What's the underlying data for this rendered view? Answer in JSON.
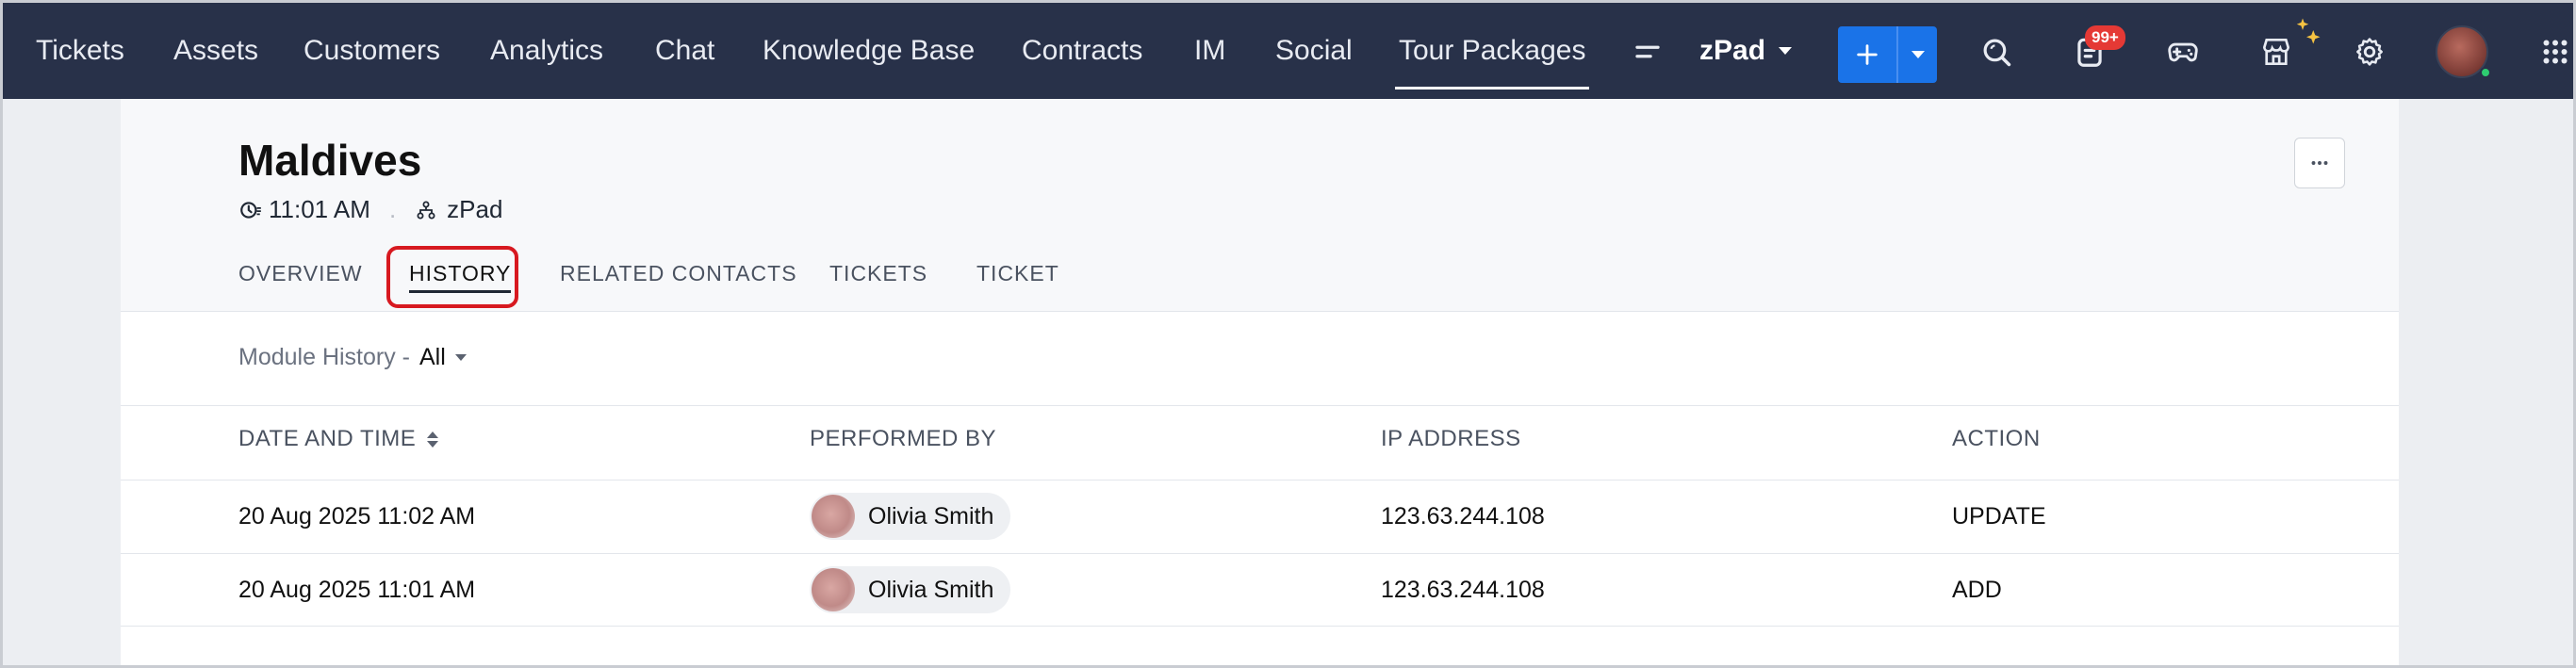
{
  "nav": {
    "items": [
      {
        "label": "Tickets"
      },
      {
        "label": "Assets"
      },
      {
        "label": "Customers"
      },
      {
        "label": "Analytics"
      },
      {
        "label": "Chat"
      },
      {
        "label": "Knowledge Base"
      },
      {
        "label": "Contracts"
      },
      {
        "label": "IM"
      },
      {
        "label": "Social"
      },
      {
        "label": "Tour Packages",
        "active": true
      }
    ],
    "department": "zPad",
    "notification_badge": "99+"
  },
  "record": {
    "title": "Maldives",
    "time": "11:01 AM",
    "department": "zPad"
  },
  "tabs": [
    {
      "label": "OVERVIEW"
    },
    {
      "label": "HISTORY",
      "active": true
    },
    {
      "label": "RELATED CONTACTS"
    },
    {
      "label": "TICKETS"
    },
    {
      "label": "TICKET"
    }
  ],
  "filter": {
    "label": "Module History -",
    "value": "All"
  },
  "table": {
    "columns": [
      "DATE AND TIME",
      "PERFORMED BY",
      "IP ADDRESS",
      "ACTION"
    ],
    "rows": [
      {
        "datetime": "20 Aug 2025 11:02 AM",
        "user": "Olivia Smith",
        "ip": "123.63.244.108",
        "action": "UPDATE"
      },
      {
        "datetime": "20 Aug 2025 11:01 AM",
        "user": "Olivia Smith",
        "ip": "123.63.244.108",
        "action": "ADD"
      }
    ]
  },
  "colors": {
    "nav_bg": "#283149",
    "accent_blue": "#1a73e8",
    "highlight_red": "#d71920",
    "badge_red": "#e53935"
  },
  "icons": [
    "menu-lines-icon",
    "plus-icon",
    "chevron-down-icon",
    "search-icon",
    "notes-icon",
    "gamepad-icon",
    "store-icon",
    "sparkle-icon",
    "gear-icon",
    "app-grid-icon",
    "clock-icon",
    "org-icon",
    "more-icon",
    "sort-icon"
  ]
}
